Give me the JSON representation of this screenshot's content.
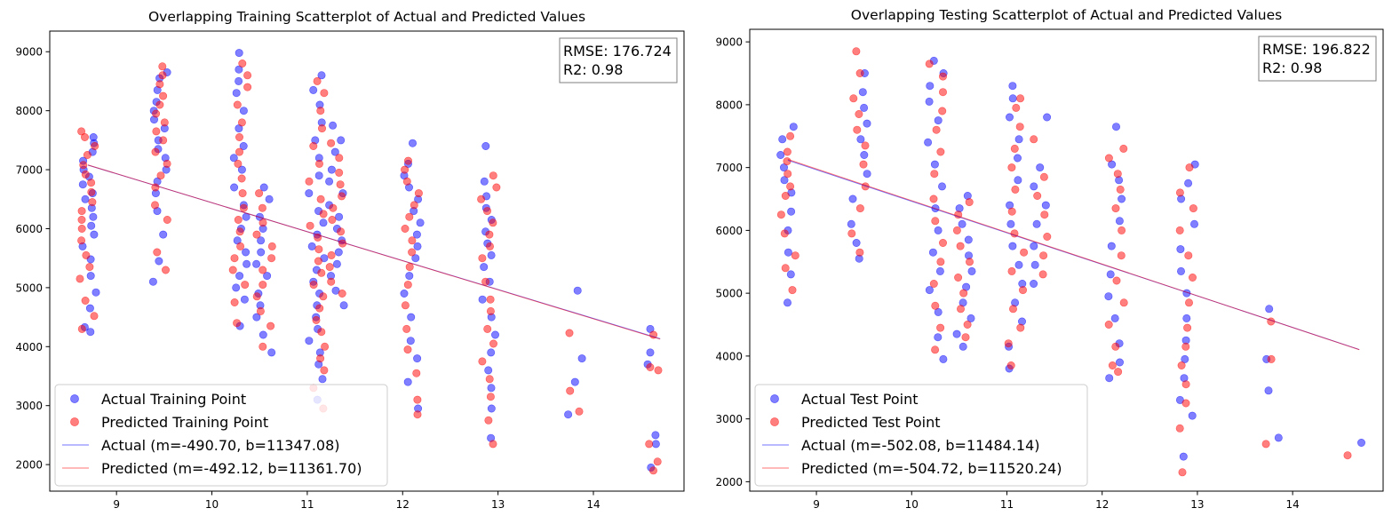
{
  "chart_data": [
    {
      "type": "scatter",
      "title": "Overlapping Training Scatterplot of Actual and Predicted Values",
      "xlabel": "",
      "ylabel": "",
      "xlim": [
        8.3,
        14.95
      ],
      "ylim": [
        1550,
        9350
      ],
      "xticks": [
        9,
        10,
        11,
        12,
        13,
        14
      ],
      "yticks": [
        2000,
        3000,
        4000,
        5000,
        6000,
        7000,
        8000,
        9000
      ],
      "metrics": {
        "rmse": "RMSE: 176.724",
        "r2": "R2: 0.98"
      },
      "legend_position": "lower-left",
      "fit_range": [
        8.7,
        14.7
      ],
      "colors": {
        "actual": "#0000ff",
        "predicted": "#ff0000"
      },
      "series": [
        {
          "name": "Actual Training Point",
          "kind": "points",
          "color": "#0000ff",
          "clusters": [
            {
              "x": 8.7,
              "ys": [
                4250,
                4330,
                4650,
                4920,
                5200,
                5480,
                5700,
                5900,
                6050,
                6200,
                6350,
                6500,
                6600,
                6750,
                6880,
                7000,
                7150,
                7300,
                7450,
                7550
              ]
            },
            {
              "x": 9.45,
              "ys": [
                5100,
                5450,
                5900,
                6300,
                6600,
                6800,
                7000,
                7200,
                7350,
                7500,
                7700,
                7850,
                8000,
                8150,
                8350,
                8550,
                8650
              ]
            },
            {
              "x": 10.3,
              "ys": [
                4350,
                4800,
                5000,
                5200,
                5400,
                5600,
                5800,
                6000,
                6200,
                6400,
                6700,
                7000,
                7200,
                7400,
                7700,
                8000,
                8300,
                8500,
                8700,
                8980
              ]
            },
            {
              "x": 10.55,
              "ys": [
                3900,
                4200,
                4500,
                4700,
                4900,
                5200,
                5400,
                5600,
                5800,
                6000,
                6200,
                6500,
                6700
              ]
            },
            {
              "x": 11.1,
              "ys": [
                3100,
                3450,
                3700,
                3900,
                4100,
                4300,
                4500,
                4700,
                4900,
                5100,
                5300,
                5500,
                5700,
                5900,
                6100,
                6300,
                6600,
                6900,
                7200,
                7500,
                7800,
                8100,
                8350,
                8600
              ]
            },
            {
              "x": 11.3,
              "ys": [
                4700,
                4950,
                5200,
                5400,
                5600,
                5800,
                6000,
                6200,
                6400,
                6600,
                6800,
                7000,
                7300,
                7500,
                7750
              ]
            },
            {
              "x": 12.1,
              "ys": [
                2950,
                3400,
                3800,
                4100,
                4500,
                4900,
                5200,
                5500,
                5700,
                5900,
                6100,
                6300,
                6500,
                6700,
                6900,
                7100,
                7450
              ]
            },
            {
              "x": 12.9,
              "ys": [
                2450,
                2950,
                3300,
                3600,
                3900,
                4200,
                4500,
                4800,
                5100,
                5350,
                5550,
                5750,
                5950,
                6150,
                6350,
                6550,
                6800,
                7400
              ]
            },
            {
              "x": 13.8,
              "ys": [
                2850,
                3400,
                3800,
                4950
              ]
            },
            {
              "x": 14.6,
              "ys": [
                1950,
                2350,
                2500,
                3700,
                3900,
                4300
              ]
            }
          ]
        },
        {
          "name": "Predicted Training Point",
          "kind": "points",
          "color": "#ff0000",
          "clusters": [
            {
              "x": 8.7,
              "ys": [
                4300,
                4520,
                4780,
                5150,
                5350,
                5550,
                5800,
                6000,
                6150,
                6300,
                6450,
                6620,
                6780,
                6920,
                7080,
                7250,
                7400,
                7550,
                7650
              ]
            },
            {
              "x": 9.45,
              "ys": [
                5300,
                5600,
                6150,
                6400,
                6700,
                6900,
                7100,
                7300,
                7500,
                7650,
                7800,
                7950,
                8100,
                8250,
                8450,
                8600,
                8750
              ]
            },
            {
              "x": 10.3,
              "ys": [
                4400,
                4750,
                5050,
                5300,
                5500,
                5700,
                5950,
                6150,
                6350,
                6600,
                6850,
                7100,
                7300,
                7550,
                7800,
                8100,
                8400,
                8600,
                8800
              ]
            },
            {
              "x": 10.55,
              "ys": [
                4000,
                4350,
                4600,
                4850,
                5050,
                5300,
                5500,
                5700,
                5900,
                6100,
                6350,
                6600
              ]
            },
            {
              "x": 11.1,
              "ys": [
                2950,
                3300,
                3600,
                3800,
                4000,
                4250,
                4450,
                4650,
                4850,
                5050,
                5250,
                5450,
                5650,
                5850,
                6050,
                6250,
                6500,
                6800,
                7100,
                7400,
                7700,
                8000,
                8300,
                8500
              ]
            },
            {
              "x": 11.3,
              "ys": [
                4900,
                5100,
                5350,
                5550,
                5750,
                5950,
                6150,
                6350,
                6550,
                6750,
                6950,
                7200,
                7450
              ]
            },
            {
              "x": 12.1,
              "ys": [
                2850,
                3100,
                3550,
                3950,
                4300,
                4700,
                5050,
                5350,
                5600,
                5800,
                6000,
                6200,
                6400,
                6600,
                6800,
                7000,
                7150
              ]
            },
            {
              "x": 12.9,
              "ys": [
                2350,
                2750,
                3150,
                3450,
                3750,
                4050,
                4300,
                4600,
                4800,
                5100,
                5500,
                5700,
                5900,
                6100,
                6300,
                6500,
                6700,
                6900
              ]
            },
            {
              "x": 13.8,
              "ys": [
                2900,
                3250,
                4230
              ]
            },
            {
              "x": 14.6,
              "ys": [
                1900,
                2050,
                2350,
                3650,
                3600,
                4200
              ]
            }
          ]
        },
        {
          "name": "Actual (m=-490.70, b=11347.08)",
          "kind": "line",
          "color": "#0000ff",
          "m": -490.7,
          "b": 11347.08
        },
        {
          "name": "Predicted (m=-492.12, b=11361.70)",
          "kind": "line",
          "color": "#ff0000",
          "m": -492.12,
          "b": 11361.7
        }
      ]
    },
    {
      "type": "scatter",
      "title": "Overlapping Testing Scatterplot of Actual and Predicted Values",
      "xlabel": "",
      "ylabel": "",
      "xlim": [
        8.3,
        14.95
      ],
      "ylim": [
        1850,
        9200
      ],
      "xticks": [
        9,
        10,
        11,
        12,
        13,
        14
      ],
      "yticks": [
        2000,
        3000,
        4000,
        5000,
        6000,
        7000,
        8000,
        9000
      ],
      "metrics": {
        "rmse": "RMSE: 196.822",
        "r2": "R2: 0.98"
      },
      "legend_position": "lower-left",
      "fit_range": [
        8.7,
        14.7
      ],
      "colors": {
        "actual": "#0000ff",
        "predicted": "#ff0000"
      },
      "series": [
        {
          "name": "Actual Test Point",
          "kind": "points",
          "color": "#0000ff",
          "clusters": [
            {
              "x": 8.7,
              "ys": [
                4850,
                5300,
                5650,
                6000,
                6300,
                6600,
                6800,
                7000,
                7200,
                7450,
                7650
              ]
            },
            {
              "x": 9.45,
              "ys": [
                5550,
                5800,
                6100,
                6500,
                6900,
                7200,
                7450,
                7700,
                7950,
                8200,
                8500
              ]
            },
            {
              "x": 10.25,
              "ys": [
                3950,
                4300,
                4700,
                5050,
                5350,
                5650,
                6000,
                6350,
                6700,
                7050,
                7400,
                7750,
                8050,
                8300,
                8500,
                8700
              ]
            },
            {
              "x": 10.55,
              "ys": [
                4150,
                4350,
                4600,
                4850,
                5100,
                5350,
                5600,
                5850,
                6100,
                6350,
                6550
              ]
            },
            {
              "x": 11.1,
              "ys": [
                3800,
                4150,
                4550,
                4850,
                5150,
                5450,
                5750,
                6100,
                6400,
                6800,
                7150,
                7450,
                7800,
                8100,
                8300
              ]
            },
            {
              "x": 11.35,
              "ys": [
                5150,
                5450,
                5750,
                6100,
                6400,
                6700,
                7000,
                7800
              ]
            },
            {
              "x": 12.15,
              "ys": [
                3650,
                3900,
                4200,
                4600,
                4950,
                5300,
                5750,
                6150,
                6500,
                6800,
                7050,
                7650
              ]
            },
            {
              "x": 12.9,
              "ys": [
                2400,
                3050,
                3300,
                3650,
                3950,
                4250,
                4600,
                5000,
                5350,
                5700,
                6100,
                6500,
                6750,
                7050
              ]
            },
            {
              "x": 13.8,
              "ys": [
                2700,
                3450,
                3950,
                4750
              ]
            },
            {
              "x": 14.65,
              "ys": [
                2620
              ]
            }
          ]
        },
        {
          "name": "Predicted Test Point",
          "kind": "points",
          "color": "#ff0000",
          "clusters": [
            {
              "x": 8.7,
              "ys": [
                5050,
                5400,
                5600,
                5950,
                6250,
                6550,
                6700,
                6900,
                7100,
                7250,
                7500
              ]
            },
            {
              "x": 9.45,
              "ys": [
                5650,
                5950,
                6350,
                6700,
                7050,
                7350,
                7600,
                7850,
                8100,
                8500,
                8850
              ]
            },
            {
              "x": 10.25,
              "ys": [
                4100,
                4450,
                4800,
                5150,
                5500,
                5800,
                6150,
                6500,
                6900,
                7250,
                7600,
                7900,
                8200,
                8450,
                8650
              ]
            },
            {
              "x": 10.55,
              "ys": [
                4300,
                4500,
                4750,
                5000,
                5250,
                5500,
                5750,
                6000,
                6250,
                6450
              ]
            },
            {
              "x": 11.1,
              "ys": [
                3850,
                4200,
                4450,
                4750,
                5050,
                5350,
                5650,
                5950,
                6300,
                6650,
                7000,
                7300,
                7650,
                7950,
                8100
              ]
            },
            {
              "x": 11.35,
              "ys": [
                5300,
                5600,
                5900,
                6250,
                6550,
                6850,
                7450
              ]
            },
            {
              "x": 12.15,
              "ys": [
                3750,
                3850,
                4150,
                4500,
                4850,
                5200,
                5600,
                6000,
                6350,
                6650,
                6900,
                7150,
                7300
              ]
            },
            {
              "x": 12.9,
              "ys": [
                2150,
                2850,
                3250,
                3550,
                3850,
                4150,
                4450,
                4850,
                5250,
                5600,
                6000,
                6350,
                6600,
                7000
              ]
            },
            {
              "x": 13.8,
              "ys": [
                2600,
                3950,
                4550
              ]
            },
            {
              "x": 14.65,
              "ys": [
                2420
              ]
            }
          ]
        },
        {
          "name": "Actual (m=-502.08, b=11484.14)",
          "kind": "line",
          "color": "#0000ff",
          "m": -502.08,
          "b": 11484.14
        },
        {
          "name": "Predicted (m=-504.72, b=11520.24)",
          "kind": "line",
          "color": "#ff0000",
          "m": -504.72,
          "b": 11520.24
        }
      ]
    }
  ]
}
